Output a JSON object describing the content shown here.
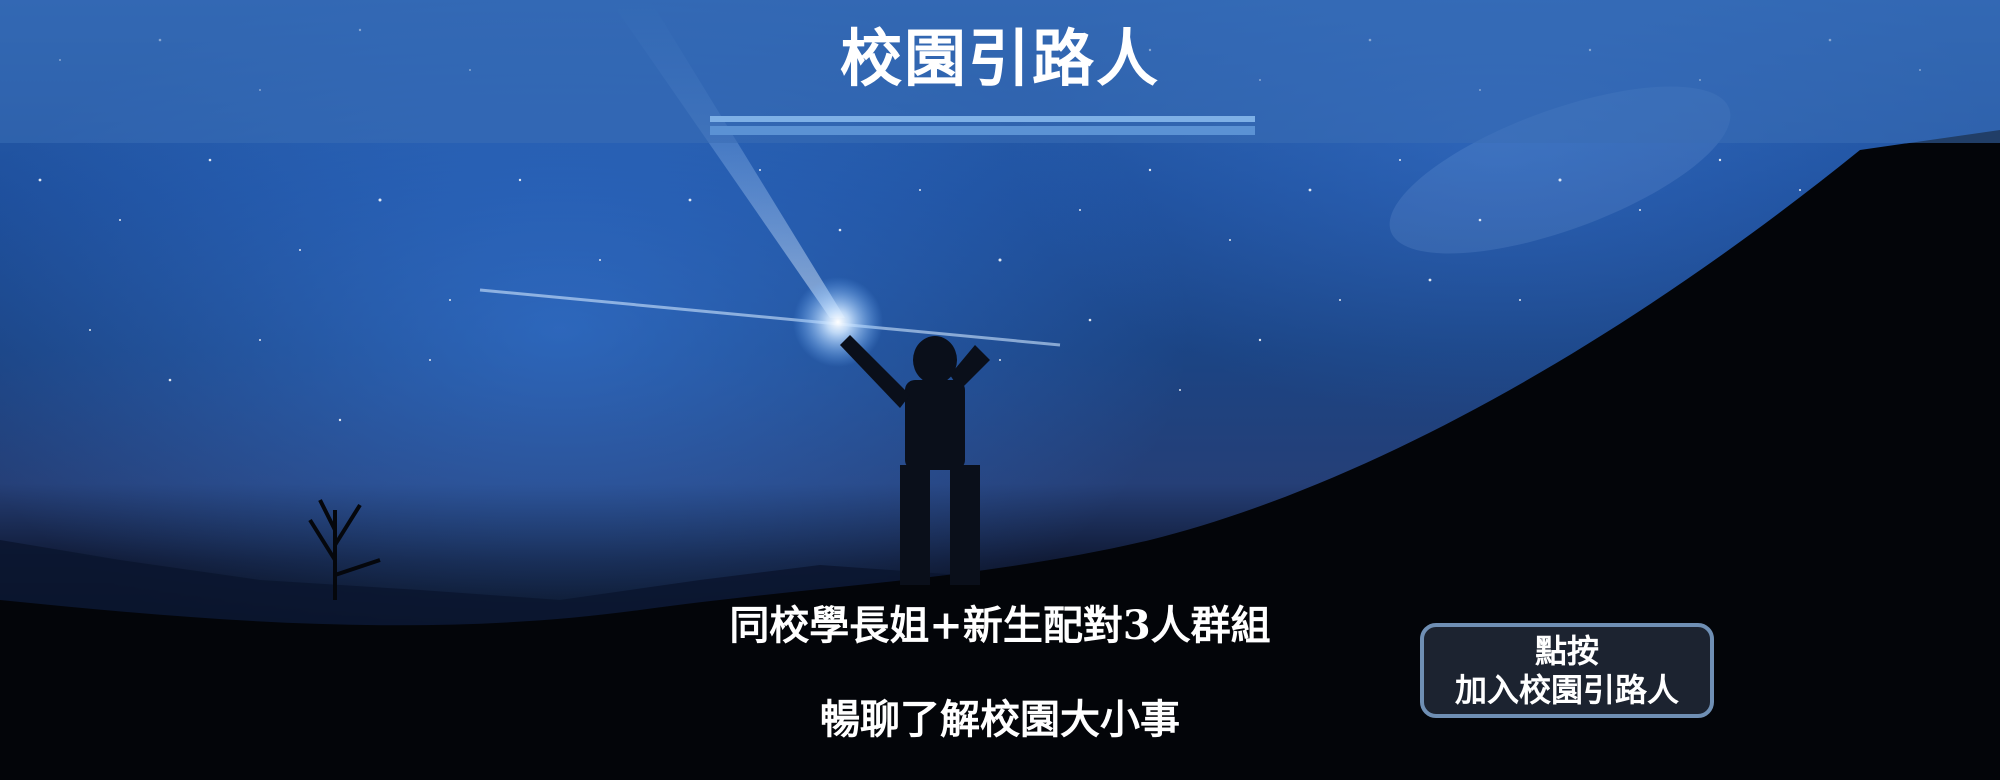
{
  "header": {
    "title": "校園引路人"
  },
  "main": {
    "tagline_line1": "同校學長姐+新生配對3人群組",
    "tagline_line2": "暢聊了解校園大小事"
  },
  "cta": {
    "line1": "點按",
    "line2": "加入校園引路人"
  },
  "colors": {
    "header_band": "#3a6eb4",
    "cta_border": "#6f8fb4",
    "cta_background": "#1c2330"
  }
}
